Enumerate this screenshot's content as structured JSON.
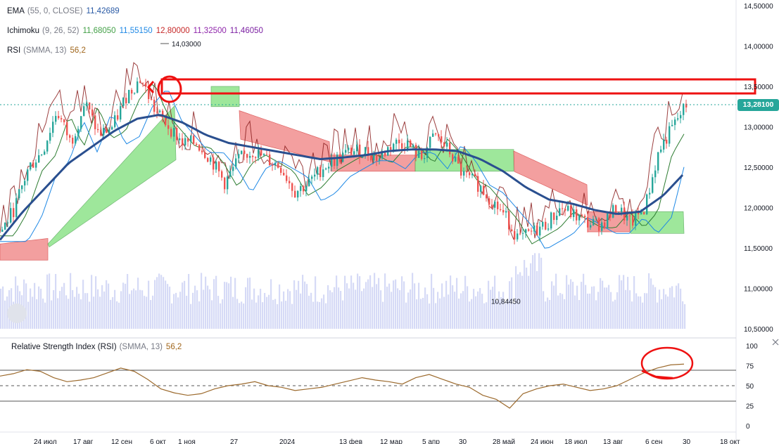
{
  "legend": {
    "ema": {
      "name": "EMA",
      "params": "(55, 0, CLOSE)",
      "value": "11,42689",
      "color": "#2a5aa5"
    },
    "ichimoku": {
      "name": "Ichimoku",
      "params": "(9, 26, 52)",
      "values": [
        {
          "v": "11,68050",
          "color": "#43a047"
        },
        {
          "v": "11,55150",
          "color": "#1e88e5"
        },
        {
          "v": "12,80000",
          "color": "#c62828"
        },
        {
          "v": "11,32500",
          "color": "#8e24aa"
        },
        {
          "v": "11,46050",
          "color": "#7b1fa2"
        }
      ]
    },
    "rsi": {
      "name": "RSI",
      "params": "(SMMA, 13)",
      "value": "56,2",
      "color": "#a0651a"
    }
  },
  "rsi_panel": {
    "name": "Relative Strength Index (RSI)",
    "params": "(SMMA, 13)",
    "value": "56,2"
  },
  "price_tag": "13,28100",
  "annotations": {
    "high": "14,03000",
    "low": "10,84450"
  },
  "chart_data": [
    {
      "type": "candlestick",
      "y_tick_labels": [
        "14,50000",
        "14,00000",
        "13,50000",
        "13,00000",
        "12,50000",
        "12,00000",
        "11,50000",
        "11,00000",
        "10,50000"
      ],
      "ylim": [
        10.5,
        14.5
      ],
      "x_tick_labels": [
        "24 июл",
        "17 авг",
        "12 сен",
        "6 окт",
        "1 ноя",
        "27",
        "2024",
        "13 фев",
        "12 мар",
        "5 апр",
        "30",
        "28 май",
        "24 июн",
        "18 июл",
        "13 авг",
        "6 сен",
        "30",
        "18 окт"
      ],
      "last_price": 13.281,
      "marked_high": 14.03,
      "marked_low": 10.8445,
      "close_path": [
        11.7,
        12.0,
        12.5,
        12.7,
        13.2,
        12.8,
        13.3,
        12.9,
        13.0,
        13.4,
        13.6,
        13.2,
        13.0,
        12.8,
        12.8,
        12.6,
        12.3,
        12.6,
        12.7,
        12.6,
        12.5,
        12.2,
        12.3,
        12.5,
        12.6,
        12.7,
        12.7,
        12.6,
        12.8,
        12.8,
        12.6,
        12.9,
        12.7,
        12.4,
        12.3,
        12.1,
        11.9,
        11.6,
        11.7,
        11.8,
        12.0,
        11.9,
        11.8,
        11.8,
        12.0,
        11.8,
        12.0,
        12.7,
        13.0,
        13.28
      ],
      "ema_path": [
        11.6,
        11.95,
        12.25,
        12.55,
        12.75,
        12.95,
        13.1,
        13.15,
        13.05,
        12.9,
        12.8,
        12.75,
        12.7,
        12.65,
        12.6,
        12.62,
        12.65,
        12.7,
        12.72,
        12.72,
        12.7,
        12.6,
        12.45,
        12.25,
        12.1,
        12.05,
        11.97,
        11.92,
        11.95,
        12.15,
        12.45
      ],
      "volume_note": "volume histogram drawn as background bars"
    },
    {
      "type": "line",
      "name": "RSI",
      "ylim": [
        0,
        100
      ],
      "y_tick_labels": [
        "100",
        "75",
        "50",
        "25",
        "0"
      ],
      "bands": [
        30,
        50,
        70
      ],
      "values": [
        62,
        65,
        70,
        68,
        60,
        55,
        57,
        60,
        66,
        72,
        68,
        58,
        46,
        41,
        38,
        40,
        46,
        50,
        52,
        55,
        50,
        48,
        44,
        46,
        48,
        52,
        56,
        60,
        57,
        55,
        52,
        60,
        64,
        58,
        52,
        48,
        38,
        33,
        22,
        40,
        46,
        50,
        52,
        48,
        44,
        46,
        50,
        58,
        66,
        72,
        76,
        77
      ]
    }
  ]
}
